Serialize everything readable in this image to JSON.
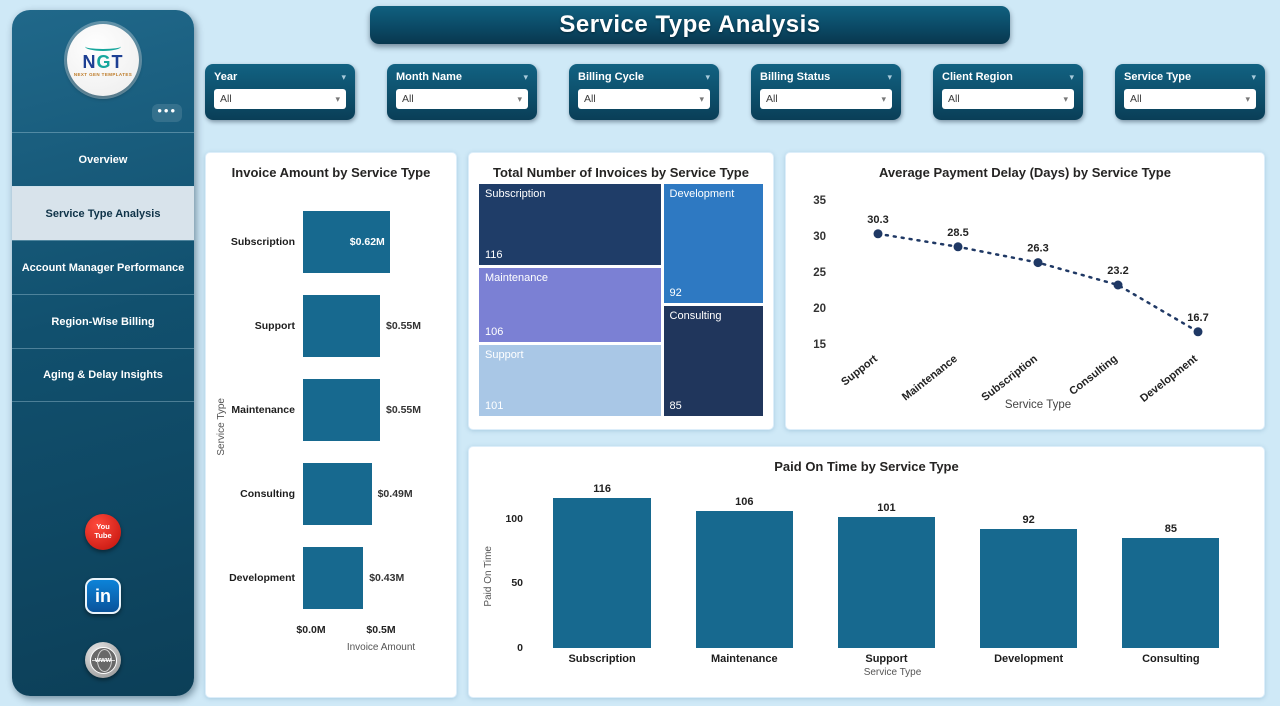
{
  "title": "Service Type Analysis",
  "icons": {
    "chevron_down": "▾",
    "more": "•••"
  },
  "sidebar": {
    "logo": {
      "name": "NGT",
      "tagline": "NEXT GEN TEMPLATES"
    },
    "items": [
      {
        "label": "Overview",
        "active": false
      },
      {
        "label": "Service Type Analysis",
        "active": true
      },
      {
        "label": "Account Manager Performance",
        "active": false
      },
      {
        "label": "Region-Wise Billing",
        "active": false
      },
      {
        "label": "Aging & Delay Insights",
        "active": false
      }
    ],
    "social": [
      {
        "name": "youtube-icon",
        "lines": [
          "You",
          "Tube"
        ]
      },
      {
        "name": "linkedin-icon",
        "label": "in"
      },
      {
        "name": "website-icon",
        "label": "www"
      }
    ]
  },
  "filters": [
    {
      "label": "Year",
      "value": "All"
    },
    {
      "label": "Month Name",
      "value": "All"
    },
    {
      "label": "Billing Cycle",
      "value": "All"
    },
    {
      "label": "Billing Status",
      "value": "All"
    },
    {
      "label": "Client Region",
      "value": "All"
    },
    {
      "label": "Service Type",
      "value": "All"
    }
  ],
  "colors": {
    "accent_teal": "#17698f",
    "navy": "#1f3864",
    "banner": "#0b4a66"
  },
  "chart_data": [
    {
      "type": "bar",
      "orientation": "horizontal",
      "title": "Invoice Amount by Service Type",
      "categories": [
        "Subscription",
        "Support",
        "Maintenance",
        "Consulting",
        "Development"
      ],
      "values": [
        0.62,
        0.55,
        0.55,
        0.49,
        0.43
      ],
      "value_labels": [
        "$0.62M",
        "$0.55M",
        "$0.55M",
        "$0.49M",
        "$0.43M"
      ],
      "xlabel": "Invoice Amount",
      "ylabel": "Service Type",
      "xlim": [
        0,
        1.0
      ],
      "x_ticks": [
        {
          "label": "$0.0M",
          "value": 0
        },
        {
          "label": "$0.5M",
          "value": 0.5
        }
      ],
      "bar_color": "#17698f",
      "grid": false
    },
    {
      "type": "treemap",
      "title": "Total Number of Invoices by Service Type",
      "items": [
        {
          "label": "Subscription",
          "value": 116,
          "color": "#1f3d68"
        },
        {
          "label": "Maintenance",
          "value": 106,
          "color": "#7b80d4"
        },
        {
          "label": "Support",
          "value": 101,
          "color": "#a9c7e6"
        },
        {
          "label": "Development",
          "value": 92,
          "color": "#2e79c2"
        },
        {
          "label": "Consulting",
          "value": 85,
          "color": "#20365c"
        }
      ]
    },
    {
      "type": "line",
      "style": "dotted",
      "title": "Average Payment Delay (Days) by Service Type",
      "categories": [
        "Support",
        "Maintenance",
        "Subscription",
        "Consulting",
        "Development"
      ],
      "values": [
        30.3,
        28.5,
        26.3,
        23.2,
        16.7
      ],
      "xlabel": "Service Type",
      "ylim": [
        15,
        35
      ],
      "y_ticks": [
        35,
        30,
        25,
        20,
        15
      ],
      "line_color": "#1f3864",
      "grid": false
    },
    {
      "type": "bar",
      "orientation": "vertical",
      "title": "Paid On Time by Service Type",
      "categories": [
        "Subscription",
        "Maintenance",
        "Support",
        "Development",
        "Consulting"
      ],
      "values": [
        116,
        106,
        101,
        92,
        85
      ],
      "xlabel": "Service Type",
      "ylabel": "Paid On Time",
      "ylim": [
        0,
        130
      ],
      "y_ticks": [
        100,
        50,
        0
      ],
      "bar_color": "#17698f",
      "grid": false
    }
  ]
}
